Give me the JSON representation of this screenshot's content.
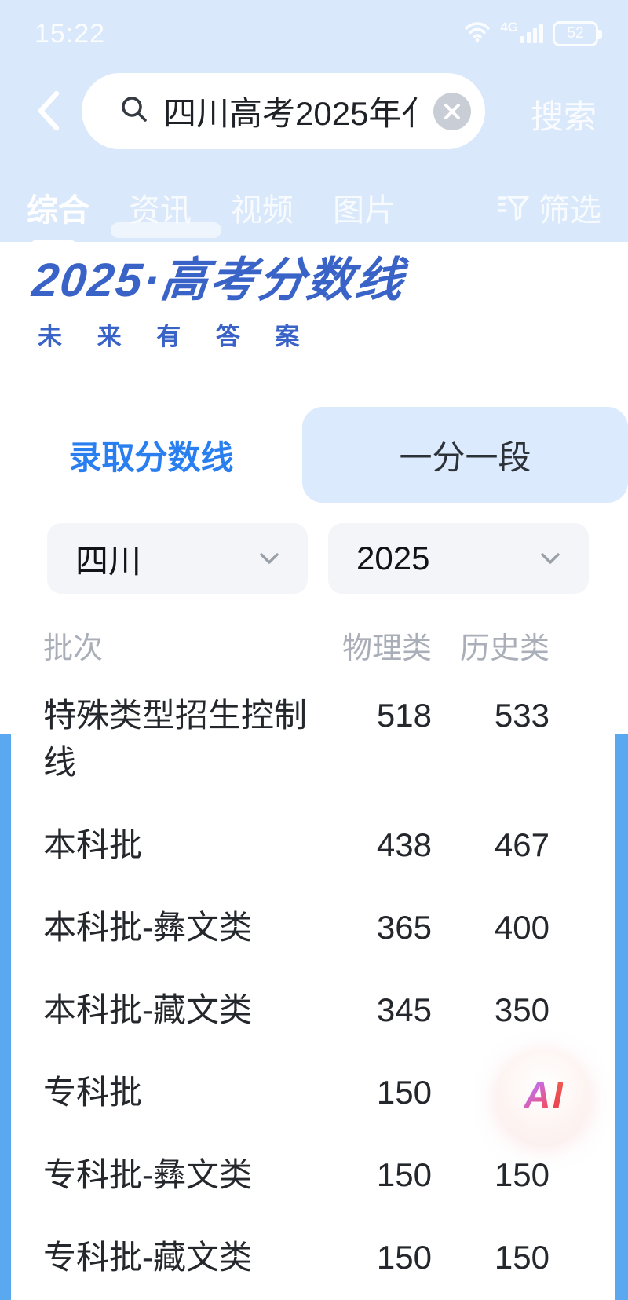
{
  "status_bar": {
    "time": "15:22",
    "network": "4G",
    "battery_percent": "52"
  },
  "search": {
    "query": "四川高考2025年亻",
    "button_label": "搜索",
    "back_icon": "chevron-left-icon",
    "clear_icon": "close-icon",
    "magnifier_icon": "search-icon"
  },
  "result_tabs": [
    {
      "label": "综合",
      "active": true,
      "has_icon": false
    },
    {
      "label": "资讯",
      "active": false,
      "has_icon": false
    },
    {
      "label": "视频",
      "active": false,
      "has_icon": false
    },
    {
      "label": "图片",
      "active": false,
      "has_icon": false
    },
    {
      "label": "筛选",
      "active": false,
      "has_icon": true,
      "icon": "filter-funnel-icon"
    }
  ],
  "card": {
    "logo_title": "2025·高考分数线",
    "logo_subtitle": "未 来 有 答 案",
    "score_tabs": [
      {
        "label": "录取分数线",
        "active": true
      },
      {
        "label": "一分一段",
        "active": false
      }
    ],
    "filters": [
      {
        "name": "region",
        "value": "四川"
      },
      {
        "name": "year",
        "value": "2025"
      }
    ],
    "table": {
      "headers": [
        "批次",
        "物理类",
        "历史类"
      ],
      "rows": [
        {
          "batch": "特殊类型招生控制线",
          "physics": "518",
          "history": "533"
        },
        {
          "batch": "本科批",
          "physics": "438",
          "history": "467"
        },
        {
          "batch": "本科批-彝文类",
          "physics": "365",
          "history": "400"
        },
        {
          "batch": "本科批-藏文类",
          "physics": "345",
          "history": "350"
        },
        {
          "batch": "专科批",
          "physics": "150",
          "history": ""
        },
        {
          "batch": "专科批-彝文类",
          "physics": "150",
          "history": "150"
        },
        {
          "batch": "专科批-藏文类",
          "physics": "150",
          "history": "150"
        }
      ]
    }
  },
  "ai_button": {
    "letter_a": "A",
    "letter_i": "I"
  },
  "colors": {
    "header_bg": "#d9e8fa",
    "accent_blue": "#2a7ff0",
    "logo_blue": "#3a63c8",
    "strip_blue": "#5aa9f0",
    "inactive_tab_bg": "#dceafd",
    "select_bg": "#f4f5f8",
    "text_dark": "#24272c",
    "text_gray": "#a9aeb8"
  }
}
